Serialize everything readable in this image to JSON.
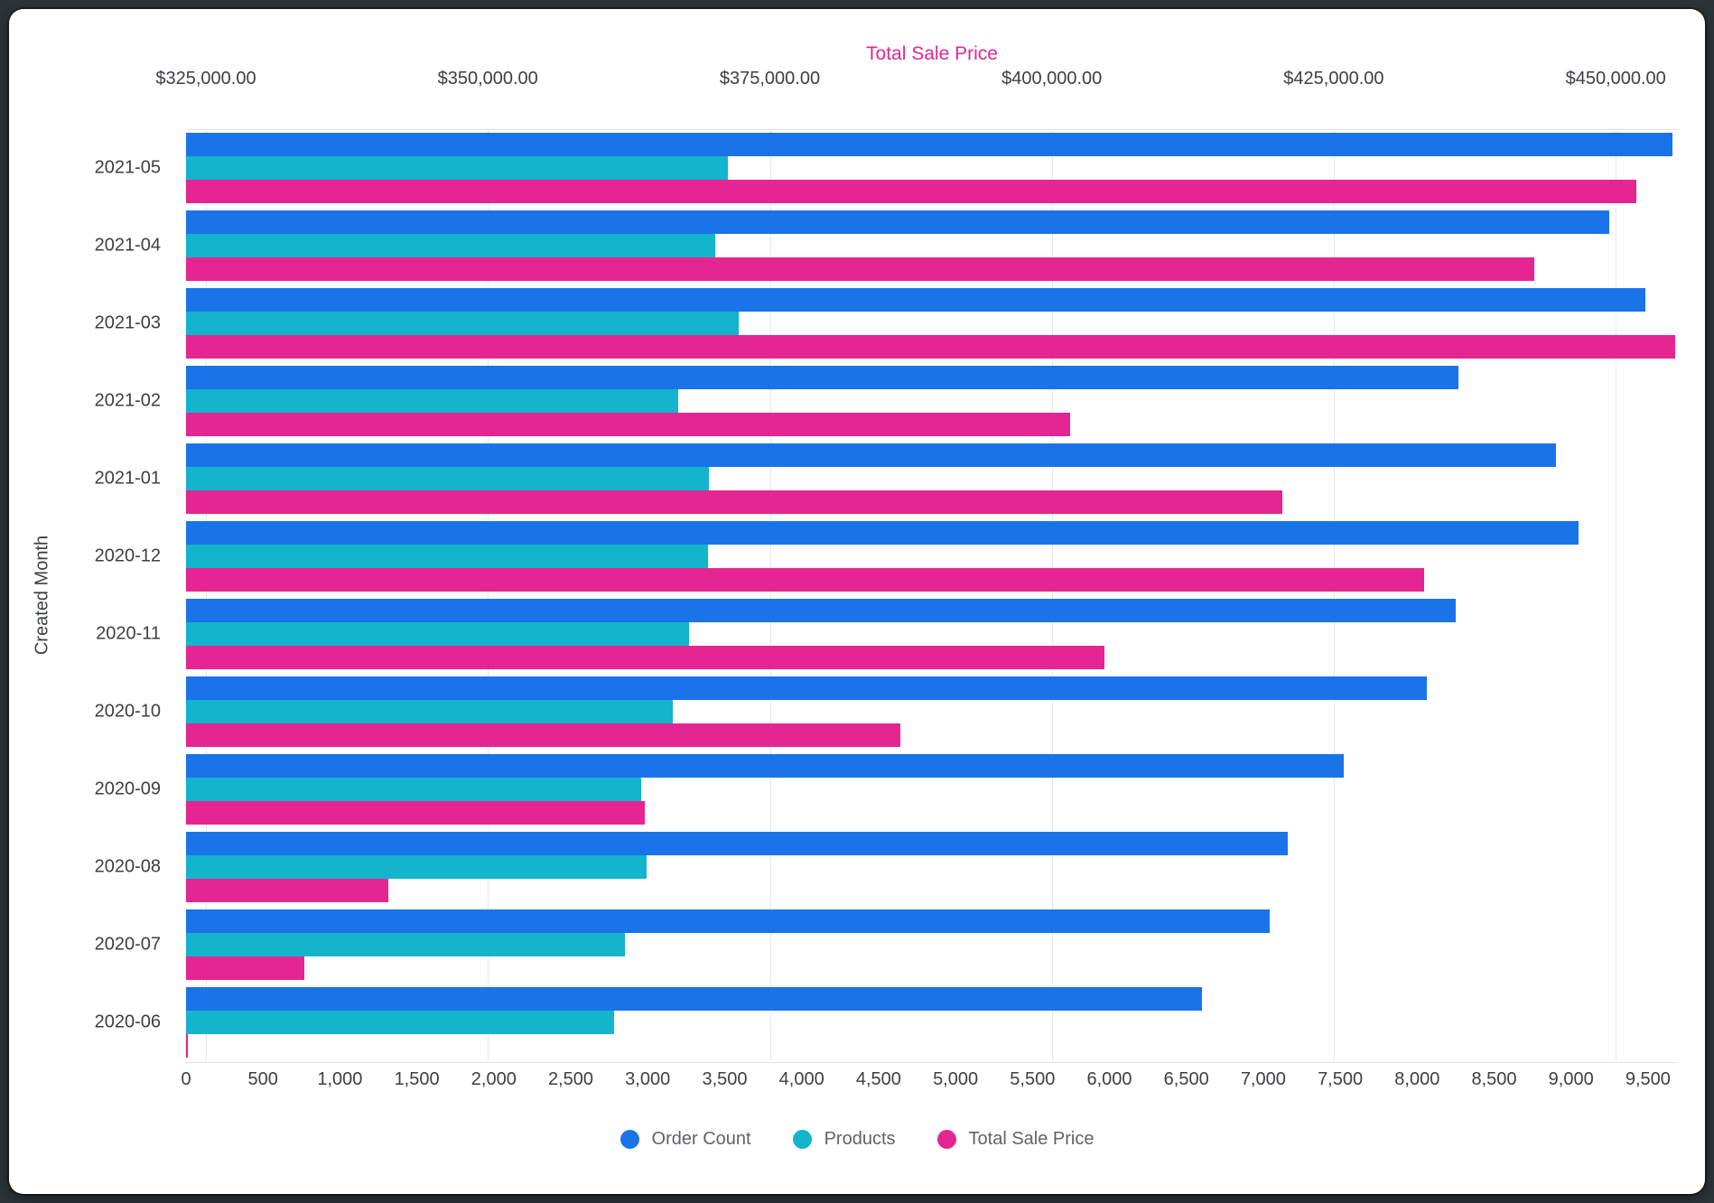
{
  "page": {
    "frame_color": "#2e3538",
    "card_color": "#ffffff"
  },
  "chart_data": {
    "type": "bar",
    "orientation": "horizontal",
    "title": "Total Sale Price",
    "title_color": "#E52592",
    "y_axis_title": "Created Month",
    "grid": "vertical-gridlines-on-top-axis-ticks",
    "legend_position": "bottom",
    "categories": [
      "2021-05",
      "2021-04",
      "2021-03",
      "2021-02",
      "2021-01",
      "2020-12",
      "2020-11",
      "2020-10",
      "2020-09",
      "2020-08",
      "2020-07",
      "2020-06"
    ],
    "series": [
      {
        "name": "Order Count",
        "axis": "bottom",
        "color": "#1A73E8",
        "values": [
          9660,
          9250,
          9480,
          8270,
          8900,
          9050,
          8250,
          8060,
          7520,
          7160,
          7040,
          6600
        ]
      },
      {
        "name": "Products",
        "axis": "bottom",
        "color": "#12B5CB",
        "values": [
          3520,
          3440,
          3590,
          3200,
          3400,
          3390,
          3270,
          3160,
          2960,
          2990,
          2850,
          2780
        ]
      },
      {
        "name": "Total Sale Price",
        "axis": "top",
        "color": "#E52592",
        "values": [
          451800,
          442800,
          455300,
          401600,
          420400,
          433000,
          404700,
          386600,
          363900,
          341200,
          333700,
          323400
        ]
      }
    ],
    "bottom_axis": {
      "min": 0,
      "max": 9694,
      "tick_values": [
        0,
        500,
        1000,
        1500,
        2000,
        2500,
        3000,
        3500,
        4000,
        4500,
        5000,
        5500,
        6000,
        6500,
        7000,
        7500,
        8000,
        8500,
        9000,
        9500
      ],
      "tick_labels": [
        "0",
        "500",
        "1,000",
        "1,500",
        "2,000",
        "2,500",
        "3,000",
        "3,500",
        "4,000",
        "4,500",
        "5,000",
        "5,500",
        "6,000",
        "6,500",
        "7,000",
        "7,500",
        "8,000",
        "8,500",
        "9,000",
        "9,500"
      ]
    },
    "top_axis": {
      "min": 323240,
      "max": 455510,
      "tick_values": [
        325000,
        350000,
        375000,
        400000,
        425000,
        450000
      ],
      "tick_labels": [
        "$325,000.00",
        "$350,000.00",
        "$375,000.00",
        "$400,000.00",
        "$425,000.00",
        "$450,000.00"
      ]
    }
  },
  "legend": {
    "items": [
      {
        "label": "Order Count",
        "color": "#1A73E8"
      },
      {
        "label": "Products",
        "color": "#12B5CB"
      },
      {
        "label": "Total Sale Price",
        "color": "#E52592"
      }
    ]
  }
}
